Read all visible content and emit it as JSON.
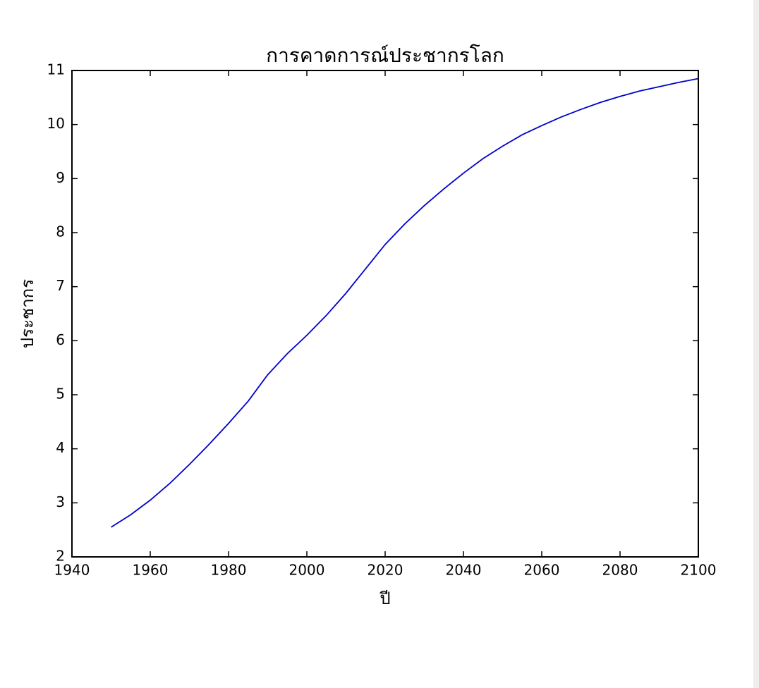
{
  "chart_data": {
    "type": "line",
    "title": "การคาดการณ์ประชากรโลก",
    "x_label": "ปี",
    "y_label": "ประชากร",
    "x": [
      1950,
      1955,
      1960,
      1965,
      1970,
      1975,
      1980,
      1985,
      1990,
      1995,
      2000,
      2005,
      2010,
      2015,
      2020,
      2025,
      2030,
      2035,
      2040,
      2045,
      2050,
      2055,
      2060,
      2065,
      2070,
      2075,
      2080,
      2085,
      2090,
      2095,
      2100
    ],
    "series": [
      {
        "name": "ประชากร",
        "color": "#0000cc",
        "values": [
          2.55,
          2.78,
          3.05,
          3.36,
          3.71,
          4.08,
          4.47,
          4.88,
          5.37,
          5.76,
          6.1,
          6.47,
          6.88,
          7.33,
          7.78,
          8.16,
          8.5,
          8.81,
          9.1,
          9.37,
          9.6,
          9.81,
          9.98,
          10.14,
          10.28,
          10.41,
          10.52,
          10.62,
          10.7,
          10.78,
          10.85
        ]
      }
    ],
    "xlim": [
      1940,
      2100
    ],
    "xticks": [
      1940,
      1960,
      1980,
      2000,
      2020,
      2040,
      2060,
      2080,
      2100
    ],
    "ylim": [
      2,
      11
    ],
    "yticks": [
      2,
      3,
      4,
      5,
      6,
      7,
      8,
      9,
      10,
      11
    ],
    "grid": false
  }
}
